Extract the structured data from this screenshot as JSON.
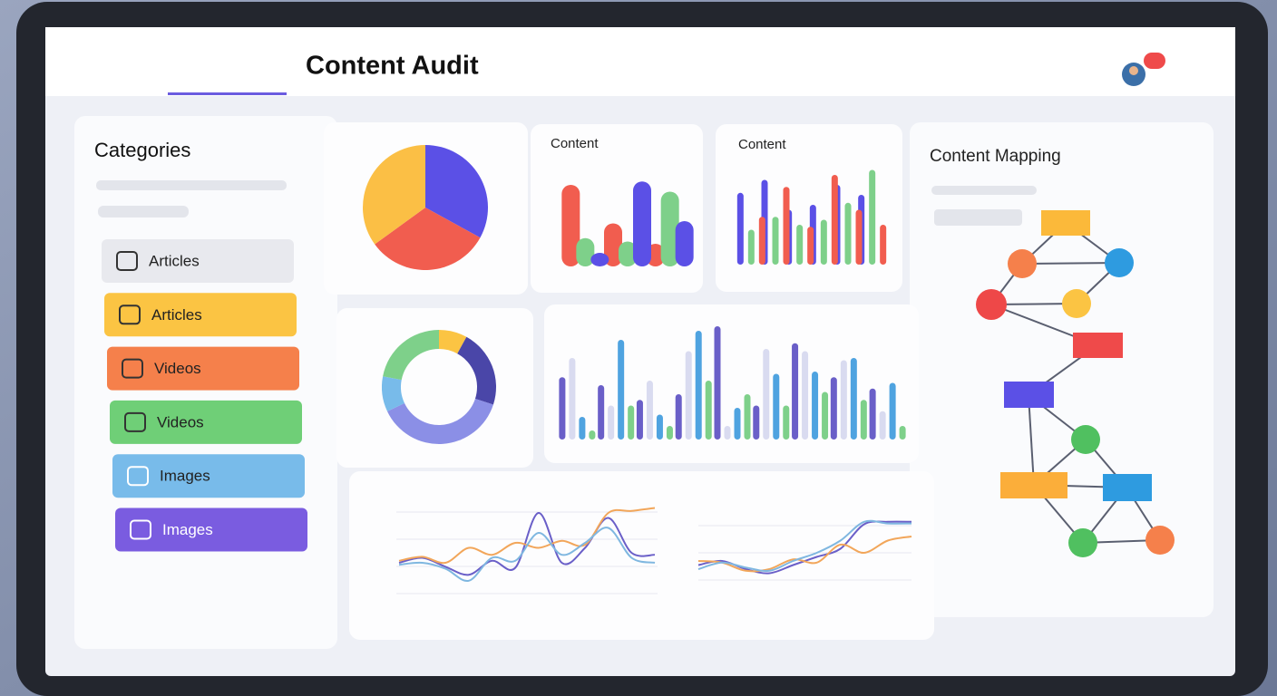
{
  "header": {
    "title": "Content Audit"
  },
  "sidebar": {
    "title": "Categories",
    "items": [
      {
        "label": "Articles",
        "color": "#e8e9ee"
      },
      {
        "label": "Articles",
        "color": "#fbc443"
      },
      {
        "label": "Videos",
        "color": "#f5804b"
      },
      {
        "label": "Videos",
        "color": "#6fcf77"
      },
      {
        "label": "Images",
        "color": "#78bbea"
      },
      {
        "label": "Images",
        "color": "#7a5ce0"
      }
    ]
  },
  "pie": {
    "values": [
      33,
      32,
      35
    ],
    "colors": [
      "#5b50e6",
      "#f15d4f",
      "#fbbf45"
    ]
  },
  "content_bars": {
    "title": "Content",
    "ylim": [
      0,
      100
    ],
    "series": [
      {
        "color": "#f15d4f",
        "values": [
          72,
          38,
          20
        ]
      },
      {
        "color": "#7ed08a",
        "values": [
          25,
          22,
          66
        ]
      },
      {
        "color": "#5b50e6",
        "values": [
          12,
          75,
          40
        ]
      }
    ]
  },
  "content_grouped": {
    "title": "Content",
    "ylim": [
      0,
      100
    ],
    "series": [
      {
        "color": "#5b50e6",
        "values": [
          72,
          85,
          55,
          60,
          80,
          70
        ]
      },
      {
        "color": "#7ed08a",
        "values": [
          35,
          48,
          40,
          45,
          62,
          95
        ]
      },
      {
        "color": "#f15d4f",
        "values": [
          48,
          78,
          38,
          90,
          55,
          40
        ]
      }
    ]
  },
  "donut": {
    "values": [
      8,
      22,
      38,
      10,
      22
    ],
    "colors": [
      "#fbc443",
      "#4a46a8",
      "#8b8fe6",
      "#78bbea",
      "#7ed08a"
    ]
  },
  "activity_bars": {
    "ylim": [
      0,
      100
    ],
    "series": [
      {
        "color": "#6a5fc8",
        "values": [
          55,
          48,
          35,
          40,
          100,
          30,
          85,
          55,
          45
        ]
      },
      {
        "color": "#d9dbf0",
        "values": [
          72,
          30,
          52,
          78,
          12,
          80,
          78,
          70,
          25
        ]
      },
      {
        "color": "#4fa3e0",
        "values": [
          20,
          88,
          22,
          96,
          28,
          58,
          60,
          72,
          50
        ]
      },
      {
        "color": "#7ed08a",
        "values": [
          8,
          30,
          12,
          52,
          40,
          30,
          42,
          35,
          12
        ]
      }
    ]
  },
  "line_left": {
    "ylim": [
      0,
      100
    ],
    "series": [
      {
        "color": "#6a5fc8",
        "values": [
          40,
          45,
          36,
          28,
          42,
          35,
          90,
          40,
          55,
          85,
          50,
          48
        ]
      },
      {
        "color": "#f2a65a",
        "values": [
          42,
          46,
          40,
          55,
          48,
          60,
          55,
          62,
          58,
          90,
          92,
          95
        ]
      },
      {
        "color": "#7fb7e0",
        "values": [
          38,
          40,
          34,
          22,
          45,
          42,
          70,
          48,
          60,
          75,
          45,
          40
        ]
      }
    ]
  },
  "line_right": {
    "ylim": [
      0,
      100
    ],
    "series": [
      {
        "color": "#6a5fc8",
        "values": [
          35,
          40,
          30,
          25,
          35,
          45,
          55,
          85,
          88,
          88
        ]
      },
      {
        "color": "#f2a65a",
        "values": [
          40,
          38,
          28,
          30,
          42,
          38,
          60,
          50,
          65,
          70
        ]
      },
      {
        "color": "#7fb7e0",
        "values": [
          30,
          38,
          32,
          28,
          40,
          50,
          65,
          88,
          86,
          86
        ]
      }
    ]
  },
  "mapping": {
    "title": "Content Mapping"
  }
}
